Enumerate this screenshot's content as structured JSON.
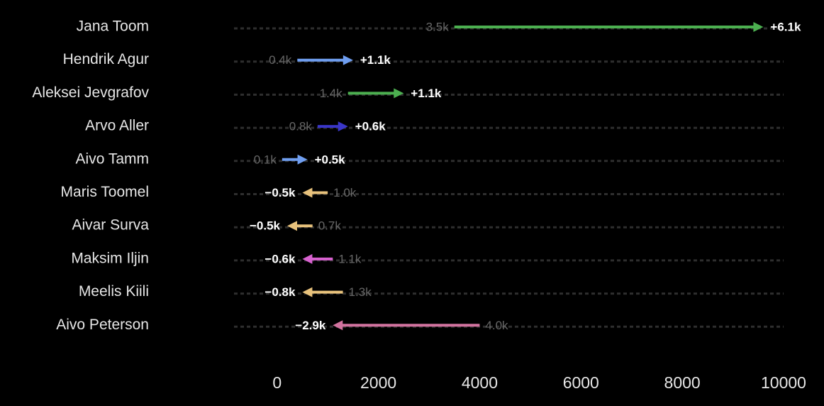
{
  "chart_data": {
    "type": "arrow",
    "categories": [
      "Jana Toom",
      "Hendrik Agur",
      "Aleksei Jevgrafov",
      "Arvo Aller",
      "Aivo Tamm",
      "Maris Toomel",
      "Aivar Surva",
      "Maksim Iljin",
      "Meelis Kiili",
      "Aivo Peterson"
    ],
    "start": {
      "values": [
        3500,
        400,
        1400,
        800,
        100,
        1000,
        700,
        1100,
        1300,
        4000
      ],
      "value_labels": [
        "3.5k",
        "0.4k",
        "1.4k",
        "0.8k",
        "0.1k",
        "1.0k",
        "0.7k",
        "1.1k",
        "1.3k",
        "4.0k"
      ]
    },
    "change": {
      "values": [
        6100,
        1100,
        1100,
        600,
        500,
        -500,
        -500,
        -600,
        -800,
        -2900
      ],
      "value_labels": [
        "+6.1k",
        "+1.1k",
        "+1.1k",
        "+0.6k",
        "+0.5k",
        "−0.5k",
        "−0.5k",
        "−0.6k",
        "−0.8k",
        "−2.9k"
      ]
    },
    "colors": [
      "#4caf50",
      "#6f9ef0",
      "#4caf50",
      "#3a36c8",
      "#6f9ef0",
      "#e8c27c",
      "#e8c27c",
      "#d862d0",
      "#e8c27c",
      "#d2739f"
    ],
    "xlim": [
      -850,
      10000
    ],
    "xticks": [
      0,
      2000,
      4000,
      6000,
      8000,
      10000
    ]
  }
}
